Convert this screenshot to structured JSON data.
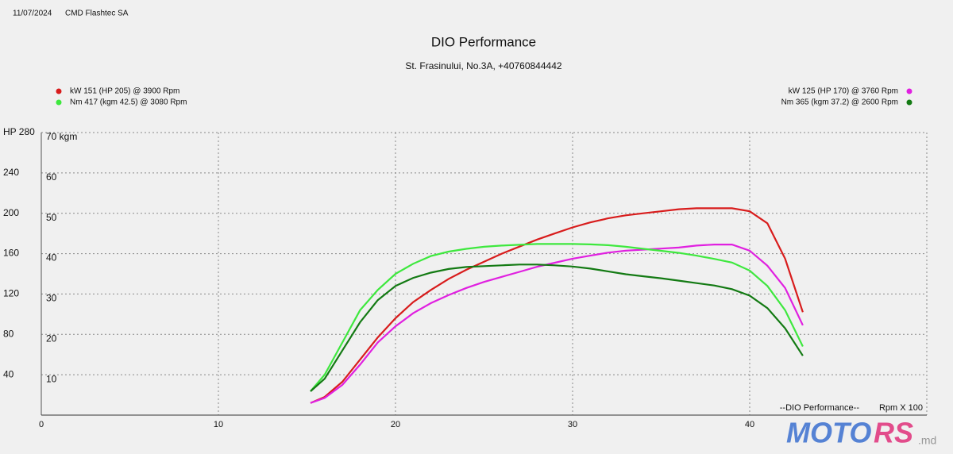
{
  "header": {
    "date": "11/07/2024",
    "company": "CMD Flashtec SA"
  },
  "chart_data": {
    "type": "line",
    "title": "DIO Performance",
    "subtitle": "St. Frasinului, No.3A, +40760844442",
    "x": [
      15.2,
      16,
      17,
      18,
      19,
      20,
      21,
      22,
      23,
      24,
      25,
      26,
      27,
      28,
      29,
      30,
      31,
      32,
      33,
      34,
      35,
      36,
      37,
      38,
      39,
      40,
      41,
      42,
      43
    ],
    "xlim": [
      0,
      50
    ],
    "xticks": [
      0,
      10,
      20,
      30,
      40
    ],
    "ylim": [
      0,
      280
    ],
    "yticks": [
      40,
      80,
      120,
      160,
      200,
      240,
      {
        "value": 280,
        "label": "HP 280"
      }
    ],
    "y2lim": [
      0,
      70
    ],
    "y2ticks": [
      10,
      20,
      30,
      40,
      50,
      60,
      {
        "value": 70,
        "label": "70 kgm"
      }
    ],
    "grid": true,
    "annotations": [
      "--DIO Performance--",
      "Rpm X 100"
    ],
    "series": [
      {
        "name": "kW 151 (HP 205) @ 3900 Rpm",
        "color": "#d81c1c",
        "values": [
          12,
          18,
          33,
          55,
          77,
          96,
          112,
          124,
          135,
          144,
          152,
          160,
          167,
          174,
          180,
          186,
          191,
          195,
          198,
          200,
          202,
          204,
          205,
          205,
          205,
          202,
          190,
          155,
          102
        ]
      },
      {
        "name": "kW 125 (HP 170) @ 3760 Rpm",
        "color": "#e020e0",
        "values": [
          12,
          17,
          30,
          50,
          72,
          88,
          101,
          111,
          119,
          126,
          132,
          137,
          142,
          147,
          151,
          155,
          158,
          161,
          163,
          164,
          165,
          166,
          168,
          169,
          169,
          163,
          148,
          126,
          89
        ]
      },
      {
        "name": "Nm 417 (kgm 42.5) @ 3080 Rpm",
        "color": "#3ee83e",
        "axis": "y2",
        "values": [
          5.9,
          10,
          18,
          26,
          31,
          35,
          37.5,
          39.4,
          40.5,
          41.2,
          41.7,
          42.0,
          42.2,
          42.4,
          42.4,
          42.4,
          42.3,
          42.1,
          41.7,
          41.2,
          40.7,
          40.2,
          39.5,
          38.7,
          37.8,
          35.8,
          32,
          26,
          17
        ]
      },
      {
        "name": "Nm 365 (kgm 37.2) @ 2600 Rpm",
        "color": "#137a13",
        "axis": "y2",
        "values": [
          5.9,
          9,
          16,
          23,
          28.5,
          32,
          34,
          35.3,
          36.2,
          36.7,
          36.9,
          37.1,
          37.3,
          37.3,
          37.1,
          36.8,
          36.3,
          35.6,
          34.9,
          34.4,
          33.9,
          33.3,
          32.7,
          32.1,
          31.2,
          29.6,
          26.5,
          21.5,
          14.7
        ]
      }
    ]
  },
  "watermark": [
    "MOTO",
    "RS",
    ".md"
  ]
}
